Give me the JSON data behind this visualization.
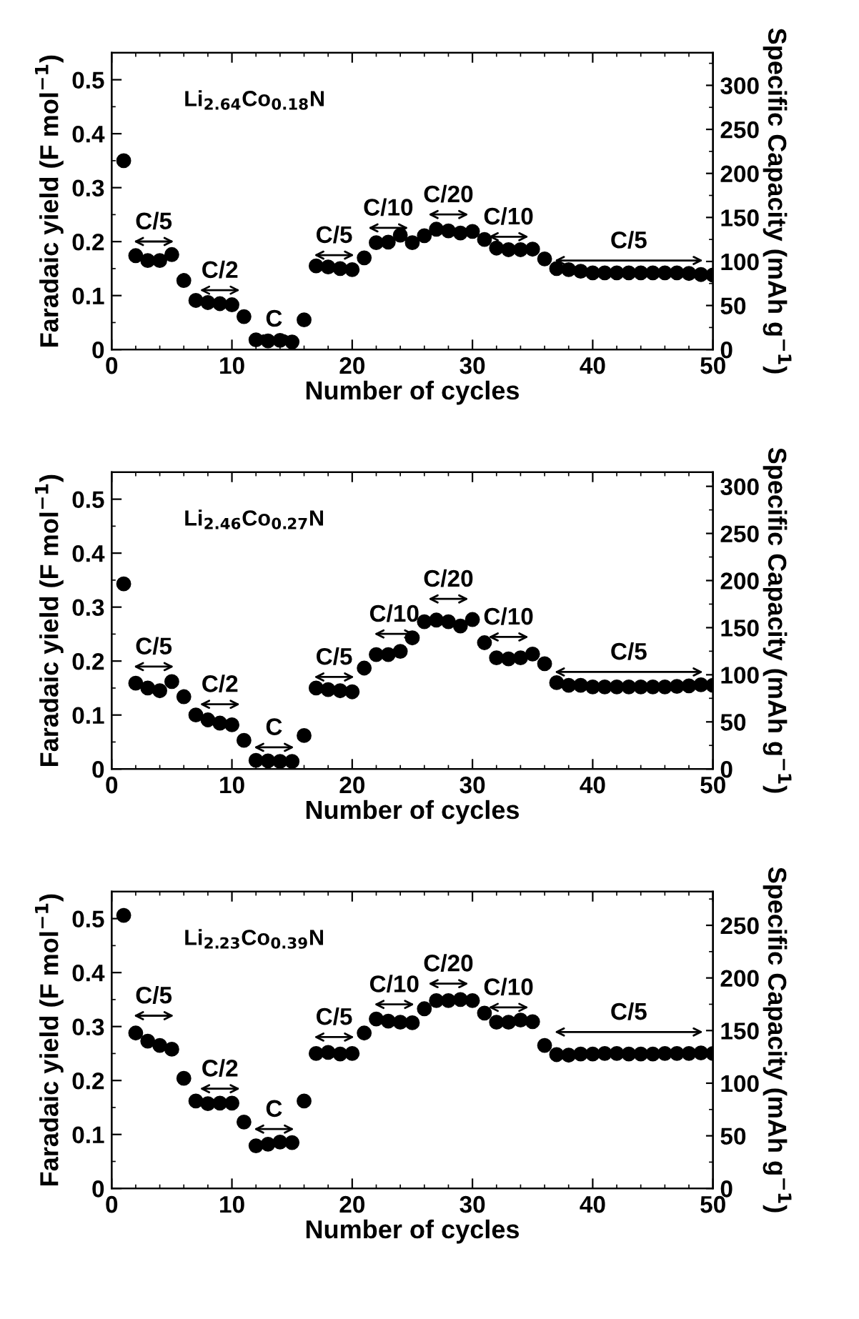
{
  "chart_data": [
    {
      "type": "scatter",
      "xlabel": "Number of cycles",
      "ylabel": "Faradaic yield (F mol$^{−1}$)",
      "y2label": "Specific Capacity (mAh g$^{−1}$)",
      "marker": "circle",
      "grid": false,
      "legend": false,
      "x": [
        1,
        2,
        3,
        4,
        5,
        6,
        7,
        8,
        9,
        10,
        11,
        12,
        13,
        14,
        15,
        16,
        17,
        18,
        19,
        20,
        21,
        22,
        23,
        24,
        25,
        26,
        27,
        28,
        29,
        30,
        31,
        32,
        33,
        34,
        35,
        36,
        37,
        38,
        39,
        40,
        41,
        42,
        43,
        44,
        45,
        46,
        47,
        48,
        49,
        50
      ],
      "series": [
        {
          "color": "#000000",
          "values": [
            0.35,
            0.174,
            0.165,
            0.165,
            0.176,
            0.128,
            0.091,
            0.087,
            0.085,
            0.083,
            0.061,
            0.018,
            0.016,
            0.017,
            0.014,
            0.055,
            0.155,
            0.153,
            0.15,
            0.148,
            0.17,
            0.198,
            0.199,
            0.212,
            0.198,
            0.211,
            0.223,
            0.22,
            0.216,
            0.219,
            0.204,
            0.188,
            0.185,
            0.185,
            0.186,
            0.168,
            0.15,
            0.148,
            0.145,
            0.142,
            0.142,
            0.142,
            0.142,
            0.142,
            0.142,
            0.142,
            0.142,
            0.141,
            0.139,
            0.138
          ]
        }
      ],
      "xlim": [
        0,
        50
      ],
      "xticks": [
        0,
        10,
        20,
        30,
        40,
        50
      ],
      "ylim": [
        0,
        0.55
      ],
      "yticks": [
        0,
        0.1,
        0.2,
        0.3,
        0.4,
        0.5
      ],
      "y2lim": [
        0,
        337
      ],
      "y2ticks": [
        0,
        50,
        100,
        150,
        200,
        250,
        300
      ],
      "annotations": [
        "Li$_{2.64}$Co$_{0.18}$N",
        "C/5",
        "C/2",
        "C",
        "C/5",
        "C/10",
        "C/20",
        "C/10",
        "C/5"
      ]
    },
    {
      "type": "scatter",
      "xlabel": "Number of cycles",
      "ylabel": "Faradaic yield (F mol$^{−1}$)",
      "y2label": "Specific Capacity (mAh g$^{−1}$)",
      "marker": "circle",
      "grid": false,
      "legend": false,
      "x": [
        1,
        2,
        3,
        4,
        5,
        6,
        7,
        8,
        9,
        10,
        11,
        12,
        13,
        14,
        15,
        16,
        17,
        18,
        19,
        20,
        21,
        22,
        23,
        24,
        25,
        26,
        27,
        28,
        29,
        30,
        31,
        32,
        33,
        34,
        35,
        36,
        37,
        38,
        39,
        40,
        41,
        42,
        43,
        44,
        45,
        46,
        47,
        48,
        49,
        50
      ],
      "series": [
        {
          "color": "#000000",
          "values": [
            0.343,
            0.159,
            0.15,
            0.145,
            0.162,
            0.134,
            0.1,
            0.091,
            0.085,
            0.082,
            0.053,
            0.016,
            0.015,
            0.014,
            0.014,
            0.062,
            0.15,
            0.147,
            0.145,
            0.143,
            0.187,
            0.212,
            0.212,
            0.218,
            0.243,
            0.273,
            0.276,
            0.273,
            0.265,
            0.277,
            0.234,
            0.206,
            0.204,
            0.206,
            0.213,
            0.195,
            0.16,
            0.155,
            0.155,
            0.152,
            0.152,
            0.152,
            0.152,
            0.152,
            0.152,
            0.152,
            0.153,
            0.154,
            0.156,
            0.155
          ]
        }
      ],
      "xlim": [
        0,
        50
      ],
      "xticks": [
        0,
        10,
        20,
        30,
        40,
        50
      ],
      "ylim": [
        0,
        0.55
      ],
      "yticks": [
        0,
        0.1,
        0.2,
        0.3,
        0.4,
        0.5
      ],
      "y2lim": [
        0,
        315
      ],
      "y2ticks": [
        0,
        50,
        100,
        150,
        200,
        250,
        300
      ],
      "annotations": [
        "Li$_{2.46}$Co$_{0.27}$N",
        "C/5",
        "C/2",
        "C",
        "C/5",
        "C/10",
        "C/20",
        "C/10",
        "C/5"
      ]
    },
    {
      "type": "scatter",
      "xlabel": "Number of cycles",
      "ylabel": "Faradaic yield (F mol$^{−1}$)",
      "y2label": "Specific Capacity (mAh g$^{−1}$)",
      "marker": "circle",
      "grid": false,
      "legend": false,
      "x": [
        1,
        2,
        3,
        4,
        5,
        6,
        7,
        8,
        9,
        10,
        11,
        12,
        13,
        14,
        15,
        16,
        17,
        18,
        19,
        20,
        21,
        22,
        23,
        24,
        25,
        26,
        27,
        28,
        29,
        30,
        31,
        32,
        33,
        34,
        35,
        36,
        37,
        38,
        39,
        40,
        41,
        42,
        43,
        44,
        45,
        46,
        47,
        48,
        49,
        50
      ],
      "series": [
        {
          "color": "#000000",
          "values": [
            0.506,
            0.288,
            0.273,
            0.265,
            0.258,
            0.204,
            0.162,
            0.157,
            0.158,
            0.158,
            0.123,
            0.079,
            0.082,
            0.086,
            0.085,
            0.162,
            0.25,
            0.252,
            0.249,
            0.25,
            0.288,
            0.314,
            0.31,
            0.308,
            0.307,
            0.333,
            0.348,
            0.348,
            0.35,
            0.348,
            0.325,
            0.308,
            0.308,
            0.312,
            0.309,
            0.265,
            0.248,
            0.247,
            0.249,
            0.249,
            0.25,
            0.25,
            0.249,
            0.249,
            0.249,
            0.25,
            0.25,
            0.25,
            0.251,
            0.25
          ]
        }
      ],
      "xlim": [
        0,
        50
      ],
      "xticks": [
        0,
        10,
        20,
        30,
        40,
        50
      ],
      "ylim": [
        0,
        0.55
      ],
      "yticks": [
        0,
        0.1,
        0.2,
        0.3,
        0.4,
        0.5
      ],
      "y2lim": [
        0,
        282
      ],
      "y2ticks": [
        0,
        50,
        100,
        150,
        200,
        250
      ],
      "annotations": [
        "Li$_{2.23}$Co$_{0.39}$N",
        "C/5",
        "C/2",
        "C",
        "C/5",
        "C/10",
        "C/20",
        "C/10",
        "C/5"
      ]
    }
  ]
}
